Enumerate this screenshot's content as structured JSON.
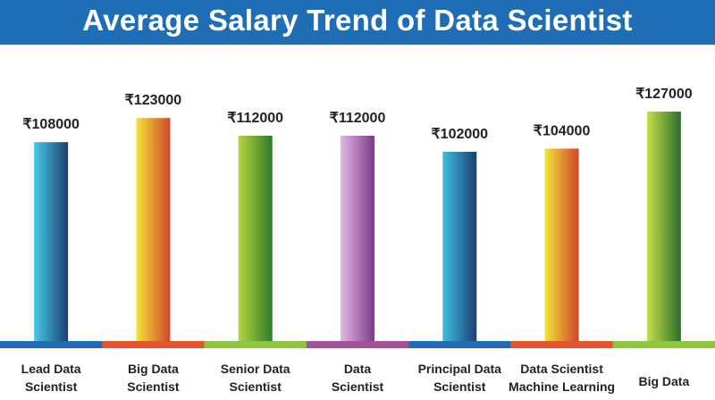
{
  "chart_data": {
    "type": "bar",
    "title": "Average Salary Trend of Data Scientist",
    "categories": [
      "Lead Data Scientist",
      "Big Data Scientist",
      "Senior Data Scientist",
      "Data Scientist",
      "Principal Data Scientist",
      "Data Scientist Machine Learning",
      "Big Data"
    ],
    "category_lines": [
      [
        "Lead Data",
        "Scientist"
      ],
      [
        "Big Data",
        "Scientist"
      ],
      [
        "Senior Data",
        "Scientist"
      ],
      [
        "Data",
        "Scientist"
      ],
      [
        "Principal Data",
        "Scientist"
      ],
      [
        "Data Scientist",
        "Machine Learning"
      ],
      [
        "Big Data"
      ]
    ],
    "values": [
      108000,
      123000,
      112000,
      112000,
      102000,
      104000,
      127000
    ],
    "value_labels": [
      "₹108000",
      "₹123000",
      "₹112000",
      "₹112000",
      "₹102000",
      "₹104000",
      "₹127000"
    ],
    "bar_gradients": [
      [
        "#46c8e8",
        "#1d3e6e"
      ],
      [
        "#f2e43a",
        "#d2452a"
      ],
      [
        "#b4d63c",
        "#2f7a2c"
      ],
      [
        "#e4b8e6",
        "#7c3a86"
      ],
      [
        "#3ec0e2",
        "#1d3e6e"
      ],
      [
        "#f2e43a",
        "#d2452a"
      ],
      [
        "#c6e04a",
        "#2a6e2a"
      ]
    ],
    "baseline_colors": [
      "#1f6db5",
      "#e2552d",
      "#8cc63f",
      "#a3519a",
      "#1f6db5",
      "#e2552d",
      "#8cc63f"
    ],
    "grid": false,
    "legend": "none"
  },
  "colors": {
    "title_band": "#1f6db5",
    "title_text": "#ffffff",
    "label_text": "#222222"
  }
}
